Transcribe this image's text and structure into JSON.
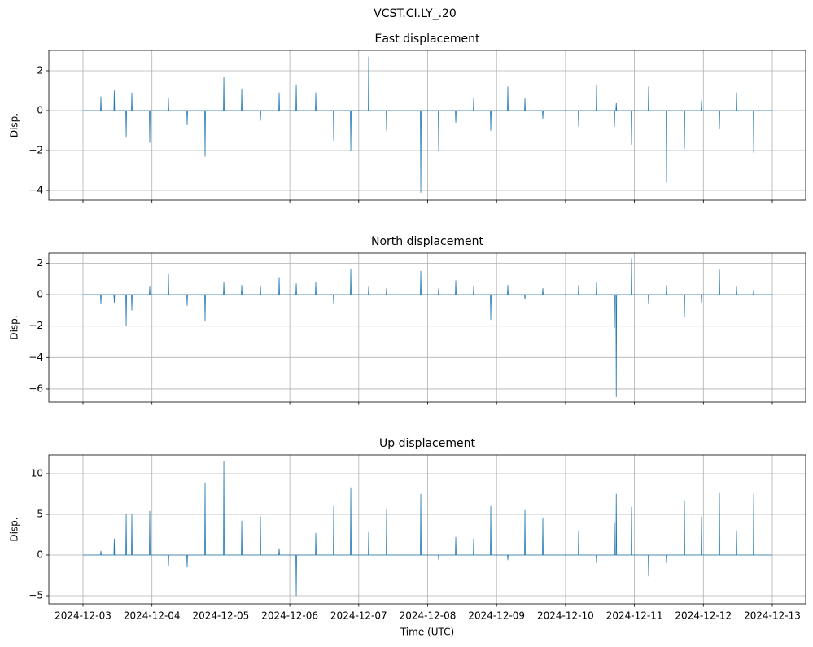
{
  "figure_title": "VCST.CI.LY_.20",
  "chart_data": [
    {
      "type": "line",
      "title": "East displacement",
      "ylabel": "Disp.",
      "grid": true,
      "xtick_labels": false,
      "xlim": [
        "2024-12-02T12:06",
        "2024-12-13T11:37"
      ],
      "xticks": [
        "2024-12-03",
        "2024-12-04",
        "2024-12-05",
        "2024-12-06",
        "2024-12-07",
        "2024-12-08",
        "2024-12-09",
        "2024-12-10",
        "2024-12-11",
        "2024-12-12",
        "2024-12-13"
      ],
      "ylim": [
        -4.49,
        3.02
      ],
      "yticks": [
        {
          "value": -4,
          "label": "−4"
        },
        {
          "value": -2,
          "label": "−2"
        },
        0,
        2
      ],
      "x": [
        "2024-12-03T00:00",
        "2024-12-03T06:06",
        "2024-12-03T06:14",
        "2024-12-03T06:22",
        "2024-12-03T10:45",
        "2024-12-03T10:53",
        "2024-12-03T11:01",
        "2024-12-03T14:54",
        "2024-12-03T15:02",
        "2024-12-03T15:10",
        "2024-12-03T16:52",
        "2024-12-03T17:00",
        "2024-12-03T17:08",
        "2024-12-03T23:06",
        "2024-12-03T23:14",
        "2024-12-03T23:22",
        "2024-12-04T05:37",
        "2024-12-04T05:45",
        "2024-12-04T05:53",
        "2024-12-04T12:08",
        "2024-12-04T12:16",
        "2024-12-04T12:24",
        "2024-12-04T18:22",
        "2024-12-04T18:30",
        "2024-12-04T18:38",
        "2024-12-05T00:54",
        "2024-12-05T01:02",
        "2024-12-05T01:10",
        "2024-12-05T07:08",
        "2024-12-05T07:16",
        "2024-12-05T07:24",
        "2024-12-05T13:39",
        "2024-12-05T13:47",
        "2024-12-05T13:55",
        "2024-12-05T20:10",
        "2024-12-05T20:18",
        "2024-12-05T20:26",
        "2024-12-06T02:07",
        "2024-12-06T02:15",
        "2024-12-06T02:23",
        "2024-12-06T08:55",
        "2024-12-06T09:03",
        "2024-12-06T09:11",
        "2024-12-06T15:09",
        "2024-12-06T15:17",
        "2024-12-06T15:25",
        "2024-12-06T21:06",
        "2024-12-06T21:14",
        "2024-12-06T21:22",
        "2024-12-07T03:20",
        "2024-12-07T03:28",
        "2024-12-07T03:36",
        "2024-12-07T09:34",
        "2024-12-07T09:42",
        "2024-12-07T09:50",
        "2024-12-07T21:28",
        "2024-12-07T21:36",
        "2024-12-07T21:44",
        "2024-12-08T03:42",
        "2024-12-08T03:50",
        "2024-12-08T03:58",
        "2024-12-08T09:39",
        "2024-12-08T09:47",
        "2024-12-08T09:55",
        "2024-12-08T15:53",
        "2024-12-08T16:01",
        "2024-12-08T16:09",
        "2024-12-08T21:50",
        "2024-12-08T21:58",
        "2024-12-08T22:06",
        "2024-12-09T03:47",
        "2024-12-09T03:55",
        "2024-12-09T04:03",
        "2024-12-09T09:44",
        "2024-12-09T09:52",
        "2024-12-09T10:00",
        "2024-12-09T15:58",
        "2024-12-09T16:06",
        "2024-12-09T16:14",
        "2024-12-10T04:26",
        "2024-12-10T04:34",
        "2024-12-10T04:42",
        "2024-12-10T10:40",
        "2024-12-10T10:48",
        "2024-12-10T10:56",
        "2024-12-10T16:54",
        "2024-12-10T17:02",
        "2024-12-10T17:10",
        "2024-12-10T17:32",
        "2024-12-10T17:40",
        "2024-12-10T17:48",
        "2024-12-10T22:51",
        "2024-12-10T22:59",
        "2024-12-10T23:07",
        "2024-12-11T04:48",
        "2024-12-11T04:56",
        "2024-12-11T05:04",
        "2024-12-11T11:02",
        "2024-12-11T11:10",
        "2024-12-11T11:18",
        "2024-12-11T17:16",
        "2024-12-11T17:24",
        "2024-12-11T17:32",
        "2024-12-11T23:13",
        "2024-12-11T23:21",
        "2024-12-11T23:29",
        "2024-12-12T05:27",
        "2024-12-12T05:35",
        "2024-12-12T05:43",
        "2024-12-12T11:24",
        "2024-12-12T11:32",
        "2024-12-12T11:40",
        "2024-12-12T17:23",
        "2024-12-12T17:31",
        "2024-12-12T17:39",
        "2024-12-13T00:00"
      ],
      "series": [
        {
          "color": "#1f77b4",
          "values": [
            0,
            0,
            0.7,
            0,
            0,
            1.0,
            0,
            0,
            -1.3,
            0,
            0,
            0.9,
            0,
            0,
            -1.6,
            0,
            0,
            0.6,
            0,
            0,
            -0.7,
            0,
            0,
            -2.3,
            0,
            0,
            1.7,
            0,
            0,
            1.1,
            0,
            0,
            -0.5,
            0,
            0,
            0.9,
            0,
            0,
            1.3,
            0,
            0,
            0.9,
            0,
            0,
            -1.5,
            0,
            0,
            -2.0,
            0,
            0,
            2.7,
            0,
            0,
            -1.0,
            0,
            0,
            -4.1,
            0,
            0,
            -2.0,
            0,
            0,
            -0.6,
            0,
            0,
            0.6,
            0,
            0,
            -1.0,
            0,
            0,
            1.2,
            0,
            0,
            0.6,
            0,
            0,
            -0.4,
            0,
            0,
            -0.8,
            0,
            0,
            1.3,
            0,
            0,
            -0.8,
            0,
            0,
            0.4,
            0,
            0,
            -1.7,
            0,
            0,
            1.2,
            0,
            0,
            -3.6,
            0,
            0,
            -1.9,
            0,
            0,
            0.5,
            0,
            0,
            -0.9,
            0,
            0,
            0.9,
            0,
            0,
            -2.1,
            0,
            0
          ]
        }
      ]
    },
    {
      "type": "line",
      "title": "North displacement",
      "ylabel": "Disp.",
      "grid": true,
      "xtick_labels": false,
      "xlim": [
        "2024-12-02T12:06",
        "2024-12-13T11:37"
      ],
      "xticks": [
        "2024-12-03",
        "2024-12-04",
        "2024-12-05",
        "2024-12-06",
        "2024-12-07",
        "2024-12-08",
        "2024-12-09",
        "2024-12-10",
        "2024-12-11",
        "2024-12-12",
        "2024-12-13"
      ],
      "ylim": [
        -6.83,
        2.64
      ],
      "yticks": [
        {
          "value": -6,
          "label": "−6"
        },
        {
          "value": -4,
          "label": "−4"
        },
        {
          "value": -2,
          "label": "−2"
        },
        0,
        2
      ],
      "x": [
        "2024-12-03T00:00",
        "2024-12-03T06:06",
        "2024-12-03T06:14",
        "2024-12-03T06:22",
        "2024-12-03T10:45",
        "2024-12-03T10:53",
        "2024-12-03T11:01",
        "2024-12-03T14:54",
        "2024-12-03T15:02",
        "2024-12-03T15:10",
        "2024-12-03T16:52",
        "2024-12-03T17:00",
        "2024-12-03T17:08",
        "2024-12-03T23:06",
        "2024-12-03T23:14",
        "2024-12-03T23:22",
        "2024-12-04T05:37",
        "2024-12-04T05:45",
        "2024-12-04T05:53",
        "2024-12-04T12:08",
        "2024-12-04T12:16",
        "2024-12-04T12:24",
        "2024-12-04T18:22",
        "2024-12-04T18:30",
        "2024-12-04T18:38",
        "2024-12-05T00:54",
        "2024-12-05T01:02",
        "2024-12-05T01:10",
        "2024-12-05T07:08",
        "2024-12-05T07:16",
        "2024-12-05T07:24",
        "2024-12-05T13:39",
        "2024-12-05T13:47",
        "2024-12-05T13:55",
        "2024-12-05T20:10",
        "2024-12-05T20:18",
        "2024-12-05T20:26",
        "2024-12-06T02:07",
        "2024-12-06T02:15",
        "2024-12-06T02:23",
        "2024-12-06T08:55",
        "2024-12-06T09:03",
        "2024-12-06T09:11",
        "2024-12-06T15:09",
        "2024-12-06T15:17",
        "2024-12-06T15:25",
        "2024-12-06T21:06",
        "2024-12-06T21:14",
        "2024-12-06T21:22",
        "2024-12-07T03:20",
        "2024-12-07T03:28",
        "2024-12-07T03:36",
        "2024-12-07T09:34",
        "2024-12-07T09:42",
        "2024-12-07T09:50",
        "2024-12-07T21:28",
        "2024-12-07T21:36",
        "2024-12-07T21:44",
        "2024-12-08T03:42",
        "2024-12-08T03:50",
        "2024-12-08T03:58",
        "2024-12-08T09:39",
        "2024-12-08T09:47",
        "2024-12-08T09:55",
        "2024-12-08T15:53",
        "2024-12-08T16:01",
        "2024-12-08T16:09",
        "2024-12-08T21:50",
        "2024-12-08T21:58",
        "2024-12-08T22:06",
        "2024-12-09T03:47",
        "2024-12-09T03:55",
        "2024-12-09T04:03",
        "2024-12-09T09:44",
        "2024-12-09T09:52",
        "2024-12-09T10:00",
        "2024-12-09T15:58",
        "2024-12-09T16:06",
        "2024-12-09T16:14",
        "2024-12-10T04:26",
        "2024-12-10T04:34",
        "2024-12-10T04:42",
        "2024-12-10T10:40",
        "2024-12-10T10:48",
        "2024-12-10T10:56",
        "2024-12-10T16:54",
        "2024-12-10T17:02",
        "2024-12-10T17:10",
        "2024-12-10T17:32",
        "2024-12-10T17:40",
        "2024-12-10T17:48",
        "2024-12-10T22:51",
        "2024-12-10T22:59",
        "2024-12-10T23:07",
        "2024-12-11T04:48",
        "2024-12-11T04:56",
        "2024-12-11T05:04",
        "2024-12-11T11:02",
        "2024-12-11T11:10",
        "2024-12-11T11:18",
        "2024-12-11T17:16",
        "2024-12-11T17:24",
        "2024-12-11T17:32",
        "2024-12-11T23:13",
        "2024-12-11T23:21",
        "2024-12-11T23:29",
        "2024-12-12T05:27",
        "2024-12-12T05:35",
        "2024-12-12T05:43",
        "2024-12-12T11:24",
        "2024-12-12T11:32",
        "2024-12-12T11:40",
        "2024-12-12T17:23",
        "2024-12-12T17:31",
        "2024-12-12T17:39",
        "2024-12-13T00:00"
      ],
      "series": [
        {
          "color": "#1f77b4",
          "values": [
            0,
            0,
            -0.6,
            0,
            0,
            -0.5,
            0,
            0,
            -2.0,
            0,
            0,
            -1.0,
            0,
            0,
            0.5,
            0,
            0,
            1.3,
            0,
            0,
            -0.7,
            0,
            0,
            -1.7,
            0,
            0,
            0.8,
            0,
            0,
            0.6,
            0,
            0,
            0.5,
            0,
            0,
            1.1,
            0,
            0,
            0.7,
            0,
            0,
            0.8,
            0,
            0,
            -0.6,
            0,
            0,
            1.6,
            0,
            0,
            0.5,
            0,
            0,
            0.4,
            0,
            0,
            1.5,
            0,
            0,
            0.4,
            0,
            0,
            0.9,
            0,
            0,
            0.5,
            0,
            0,
            -1.6,
            0,
            0,
            0.6,
            0,
            0,
            -0.3,
            0,
            0,
            0.4,
            0,
            0,
            0.6,
            0,
            0,
            0.8,
            0,
            0,
            -2.1,
            0,
            0,
            -6.5,
            0,
            0,
            2.3,
            0,
            0,
            -0.6,
            0,
            0,
            0.6,
            0,
            0,
            -1.4,
            0,
            0,
            -0.5,
            0,
            0,
            1.6,
            0,
            0,
            0.5,
            0,
            0,
            0.3,
            0,
            0
          ]
        }
      ]
    },
    {
      "type": "line",
      "title": "Up displacement",
      "ylabel": "Disp.",
      "xlabel": "Time (UTC)",
      "grid": true,
      "xtick_labels": true,
      "xlim": [
        "2024-12-02T12:06",
        "2024-12-13T11:37"
      ],
      "xticks": [
        "2024-12-03",
        "2024-12-04",
        "2024-12-05",
        "2024-12-06",
        "2024-12-07",
        "2024-12-08",
        "2024-12-09",
        "2024-12-10",
        "2024-12-11",
        "2024-12-12",
        "2024-12-13"
      ],
      "ylim": [
        -6.0,
        12.3
      ],
      "yticks": [
        {
          "value": -5,
          "label": "−5"
        },
        0,
        5,
        10
      ],
      "x": [
        "2024-12-03T00:00",
        "2024-12-03T06:06",
        "2024-12-03T06:14",
        "2024-12-03T06:22",
        "2024-12-03T10:45",
        "2024-12-03T10:53",
        "2024-12-03T11:01",
        "2024-12-03T14:54",
        "2024-12-03T15:02",
        "2024-12-03T15:10",
        "2024-12-03T16:52",
        "2024-12-03T17:00",
        "2024-12-03T17:08",
        "2024-12-03T23:06",
        "2024-12-03T23:14",
        "2024-12-03T23:22",
        "2024-12-04T05:37",
        "2024-12-04T05:45",
        "2024-12-04T05:53",
        "2024-12-04T12:08",
        "2024-12-04T12:16",
        "2024-12-04T12:24",
        "2024-12-04T18:22",
        "2024-12-04T18:30",
        "2024-12-04T18:38",
        "2024-12-05T00:54",
        "2024-12-05T01:02",
        "2024-12-05T01:10",
        "2024-12-05T07:08",
        "2024-12-05T07:16",
        "2024-12-05T07:24",
        "2024-12-05T13:39",
        "2024-12-05T13:47",
        "2024-12-05T13:55",
        "2024-12-05T20:10",
        "2024-12-05T20:18",
        "2024-12-05T20:26",
        "2024-12-06T02:07",
        "2024-12-06T02:15",
        "2024-12-06T02:23",
        "2024-12-06T08:55",
        "2024-12-06T09:03",
        "2024-12-06T09:11",
        "2024-12-06T15:09",
        "2024-12-06T15:17",
        "2024-12-06T15:25",
        "2024-12-06T21:06",
        "2024-12-06T21:14",
        "2024-12-06T21:22",
        "2024-12-07T03:20",
        "2024-12-07T03:28",
        "2024-12-07T03:36",
        "2024-12-07T09:34",
        "2024-12-07T09:42",
        "2024-12-07T09:50",
        "2024-12-07T21:28",
        "2024-12-07T21:36",
        "2024-12-07T21:44",
        "2024-12-08T03:42",
        "2024-12-08T03:50",
        "2024-12-08T03:58",
        "2024-12-08T09:39",
        "2024-12-08T09:47",
        "2024-12-08T09:55",
        "2024-12-08T15:53",
        "2024-12-08T16:01",
        "2024-12-08T16:09",
        "2024-12-08T21:50",
        "2024-12-08T21:58",
        "2024-12-08T22:06",
        "2024-12-09T03:47",
        "2024-12-09T03:55",
        "2024-12-09T04:03",
        "2024-12-09T09:44",
        "2024-12-09T09:52",
        "2024-12-09T10:00",
        "2024-12-09T15:58",
        "2024-12-09T16:06",
        "2024-12-09T16:14",
        "2024-12-10T04:26",
        "2024-12-10T04:34",
        "2024-12-10T04:42",
        "2024-12-10T10:40",
        "2024-12-10T10:48",
        "2024-12-10T10:56",
        "2024-12-10T16:54",
        "2024-12-10T17:02",
        "2024-12-10T17:10",
        "2024-12-10T17:32",
        "2024-12-10T17:40",
        "2024-12-10T17:48",
        "2024-12-10T22:51",
        "2024-12-10T22:59",
        "2024-12-10T23:07",
        "2024-12-11T04:48",
        "2024-12-11T04:56",
        "2024-12-11T05:04",
        "2024-12-11T11:02",
        "2024-12-11T11:10",
        "2024-12-11T11:18",
        "2024-12-11T17:16",
        "2024-12-11T17:24",
        "2024-12-11T17:32",
        "2024-12-11T23:13",
        "2024-12-11T23:21",
        "2024-12-11T23:29",
        "2024-12-12T05:27",
        "2024-12-12T05:35",
        "2024-12-12T05:43",
        "2024-12-12T11:24",
        "2024-12-12T11:32",
        "2024-12-12T11:40",
        "2024-12-12T17:23",
        "2024-12-12T17:31",
        "2024-12-12T17:39",
        "2024-12-13T00:00"
      ],
      "series": [
        {
          "color": "#1f77b4",
          "values": [
            0,
            0,
            0.5,
            0,
            0,
            2.0,
            0,
            0,
            5.0,
            0,
            0,
            5.0,
            0,
            0,
            5.4,
            0,
            0,
            -1.3,
            0,
            0,
            -1.5,
            0,
            0,
            8.9,
            0,
            0,
            11.5,
            0,
            0,
            4.2,
            0,
            0,
            4.7,
            0,
            0,
            0.8,
            0,
            0,
            -5.0,
            0,
            0,
            2.7,
            0,
            0,
            6.0,
            0,
            0,
            8.2,
            0,
            0,
            2.8,
            0,
            0,
            5.6,
            0,
            0,
            7.5,
            0,
            0,
            -0.6,
            0,
            0,
            2.2,
            0,
            0,
            2.0,
            0,
            0,
            6.0,
            0,
            0,
            -0.6,
            0,
            0,
            5.5,
            0,
            0,
            4.5,
            0,
            0,
            3.0,
            0,
            0,
            -1.0,
            0,
            0,
            3.9,
            0,
            0,
            7.5,
            0,
            0,
            5.9,
            0,
            0,
            -2.6,
            0,
            0,
            -1.0,
            0,
            0,
            6.7,
            0,
            0,
            4.7,
            0,
            0,
            7.6,
            0,
            0,
            3.0,
            0,
            0,
            7.5,
            0,
            0
          ]
        }
      ]
    }
  ]
}
